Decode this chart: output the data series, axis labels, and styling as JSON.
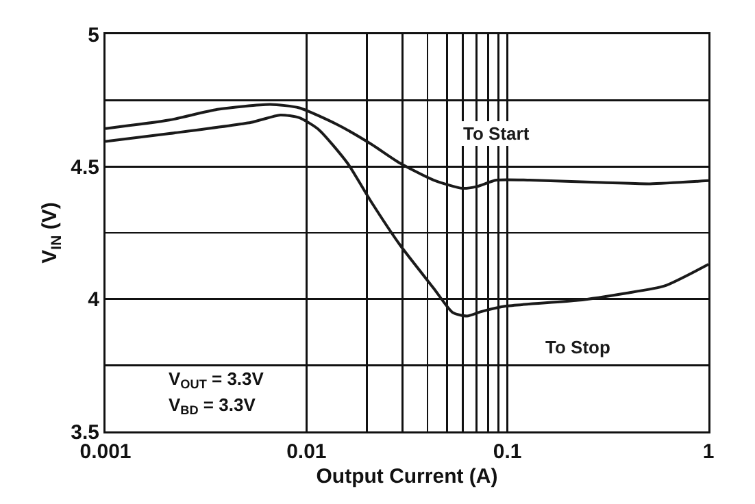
{
  "chart_data": {
    "type": "line",
    "xlabel": "Output Current (A)",
    "ylabel": "V$_{IN}$ (V)",
    "log": "x",
    "xlim": [
      0.001,
      1
    ],
    "xticks": [
      0.001,
      0.01,
      {
        "value": 0.02,
        "label": null
      },
      {
        "value": 0.03,
        "label": null
      },
      {
        "value": 0.04,
        "label": null
      },
      {
        "value": 0.05,
        "label": null
      },
      {
        "value": 0.06,
        "label": null
      },
      {
        "value": 0.07,
        "label": null
      },
      {
        "value": 0.08,
        "label": null
      },
      {
        "value": 0.09,
        "label": null
      },
      0.1,
      1
    ],
    "ylim": [
      3.5,
      5
    ],
    "yticks": [
      3.5,
      {
        "value": 3.75,
        "label": null
      },
      4,
      {
        "value": 4.25,
        "label": null
      },
      4.5,
      {
        "value": 4.75,
        "label": null
      },
      5
    ],
    "grid": true,
    "legend": false,
    "marker": "none",
    "line_style": "solid",
    "series": [
      {
        "name": "To Start",
        "color": "#1a1a1a",
        "x": [
          0.001,
          0.00208,
          0.0036,
          0.0066,
          0.0092,
          0.0143,
          0.021,
          0.0292,
          0.043,
          0.0597,
          0.0705,
          0.088,
          0.129,
          0.295,
          0.512,
          1
        ],
        "values": [
          4.644,
          4.676,
          4.716,
          4.735,
          4.722,
          4.658,
          4.585,
          4.513,
          4.449,
          4.418,
          4.425,
          4.449,
          4.449,
          4.44,
          4.435,
          4.447
        ]
      },
      {
        "name": "To Stop",
        "color": "#1a1a1a",
        "x": [
          0.001,
          0.00208,
          0.0053,
          0.0074,
          0.0092,
          0.0115,
          0.016,
          0.021,
          0.0292,
          0.043,
          0.0534,
          0.063,
          0.0745,
          0.098,
          0.224,
          0.388,
          0.603,
          1
        ],
        "values": [
          4.595,
          4.625,
          4.667,
          4.695,
          4.685,
          4.64,
          4.513,
          4.367,
          4.204,
          4.04,
          3.949,
          3.936,
          3.953,
          3.973,
          3.995,
          4.022,
          4.049,
          4.131
        ]
      }
    ],
    "annotations": [
      "V$_{OUT}$ = 3.3V",
      "V$_{BD}$ = 3.3V"
    ]
  }
}
